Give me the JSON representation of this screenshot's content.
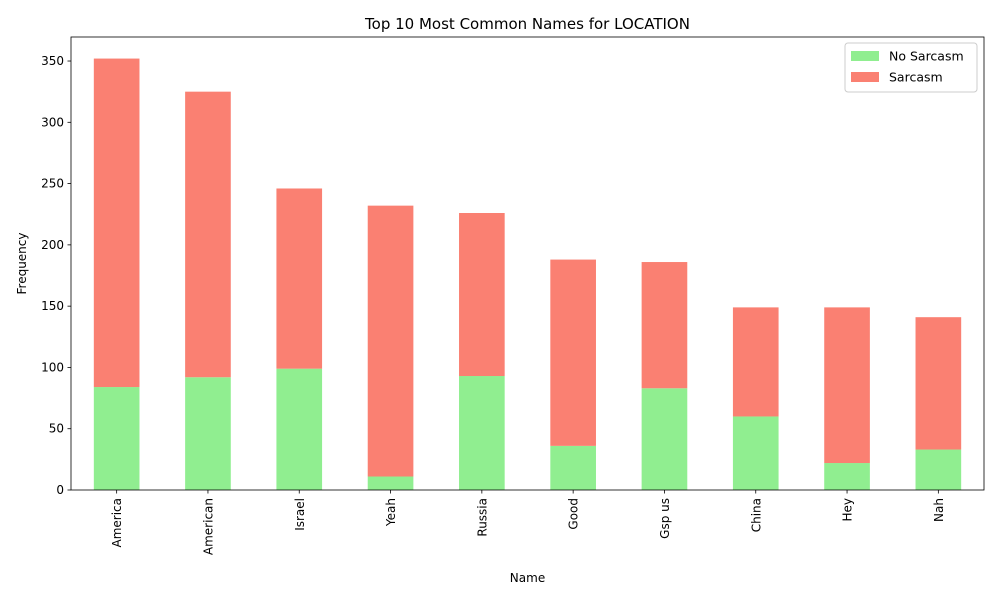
{
  "chart_data": {
    "type": "bar",
    "stacked": true,
    "title": "Top 10 Most Common Names for LOCATION",
    "xlabel": "Name",
    "ylabel": "Frequency",
    "categories": [
      "America",
      "American",
      "Israel",
      "Yeah",
      "Russia",
      "Good",
      "Gsp us",
      "China",
      "Hey",
      "Nah"
    ],
    "series": [
      {
        "name": "No Sarcasm",
        "color": "#90ee90",
        "values": [
          84,
          92,
          99,
          11,
          93,
          36,
          83,
          60,
          22,
          33
        ]
      },
      {
        "name": "Sarcasm",
        "color": "#fa8072",
        "values": [
          268,
          233,
          147,
          221,
          133,
          152,
          103,
          89,
          127,
          108
        ]
      }
    ],
    "ylim": [
      0,
      369.6
    ],
    "yticks": [
      0,
      50,
      100,
      150,
      200,
      250,
      300,
      350
    ],
    "grid": false,
    "legend_position": "top-right"
  }
}
